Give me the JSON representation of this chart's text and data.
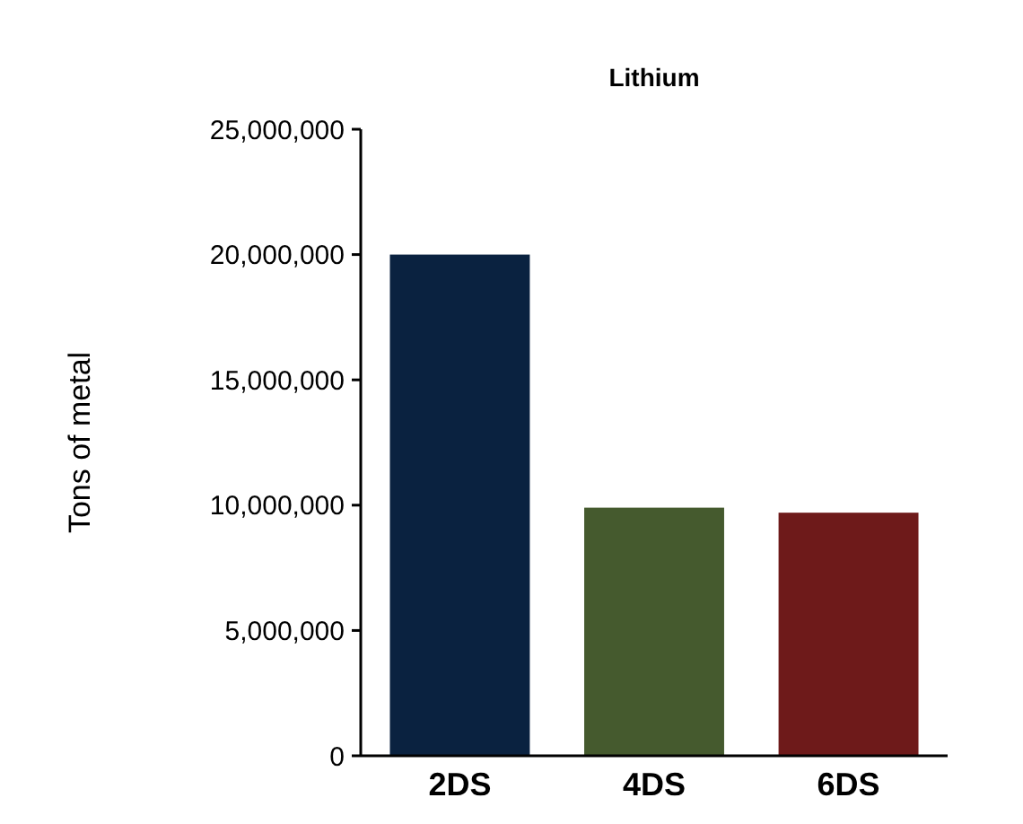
{
  "chart_data": {
    "type": "bar",
    "title": "Lithium",
    "ylabel": "Tons of metal",
    "categories": [
      "2DS",
      "4DS",
      "6DS"
    ],
    "values": [
      20000000,
      9900000,
      9700000
    ],
    "colors": [
      "#0a2240",
      "#455a2e",
      "#6e1a1a"
    ],
    "ylim": [
      0,
      25000000
    ],
    "yticks": [
      {
        "value": 0,
        "label": "0"
      },
      {
        "value": 5000000,
        "label": "5,000,000"
      },
      {
        "value": 10000000,
        "label": "10,000,000"
      },
      {
        "value": 15000000,
        "label": "15,000,000"
      },
      {
        "value": 20000000,
        "label": "20,000,000"
      },
      {
        "value": 25000000,
        "label": "25,000,000"
      }
    ],
    "grid": false
  }
}
